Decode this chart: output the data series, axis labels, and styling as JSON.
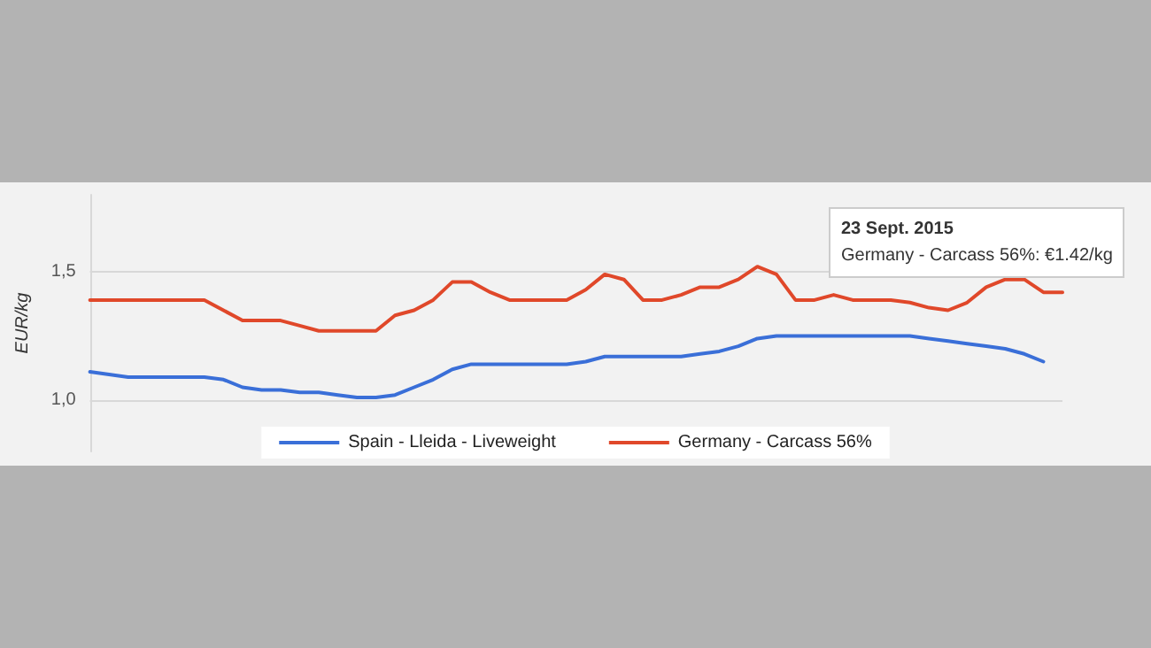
{
  "chart_data": {
    "type": "line",
    "ylabel": "EUR/kg",
    "categories": [
      null,
      null,
      null,
      null,
      null,
      null,
      null,
      null,
      null,
      null,
      null,
      null,
      null,
      null,
      null,
      null,
      null,
      null,
      null,
      null,
      null,
      null,
      null,
      null,
      null,
      null,
      null,
      null,
      null,
      null,
      null,
      null,
      null,
      null,
      null,
      null,
      null,
      null,
      null,
      null,
      null,
      null,
      null,
      null,
      null,
      null,
      null,
      null,
      null,
      null,
      null,
      null
    ],
    "series": [
      {
        "name": "Spain - Lleida - Liveweight",
        "color": "#3a6fd8",
        "values": [
          1.11,
          1.1,
          1.09,
          1.09,
          1.09,
          1.09,
          1.09,
          1.08,
          1.05,
          1.04,
          1.04,
          1.03,
          1.03,
          1.02,
          1.01,
          1.01,
          1.02,
          1.05,
          1.08,
          1.12,
          1.14,
          1.14,
          1.14,
          1.14,
          1.14,
          1.14,
          1.15,
          1.17,
          1.17,
          1.17,
          1.17,
          1.17,
          1.18,
          1.19,
          1.21,
          1.24,
          1.25,
          1.25,
          1.25,
          1.25,
          1.25,
          1.25,
          1.25,
          1.25,
          1.24,
          1.23,
          1.22,
          1.21,
          1.2,
          1.18,
          1.15,
          null
        ]
      },
      {
        "name": "Germany - Carcass 56%",
        "color": "#e0482a",
        "values": [
          1.39,
          1.39,
          1.39,
          1.39,
          1.39,
          1.39,
          1.39,
          1.35,
          1.31,
          1.31,
          1.31,
          1.29,
          1.27,
          1.27,
          1.27,
          1.27,
          1.33,
          1.35,
          1.39,
          1.46,
          1.46,
          1.42,
          1.39,
          1.39,
          1.39,
          1.39,
          1.43,
          1.49,
          1.47,
          1.39,
          1.39,
          1.41,
          1.44,
          1.44,
          1.47,
          1.52,
          1.49,
          1.39,
          1.39,
          1.41,
          1.39,
          1.39,
          1.39,
          1.38,
          1.36,
          1.35,
          1.38,
          1.44,
          1.47,
          1.47,
          1.42,
          1.42
        ]
      }
    ],
    "ylim": [
      0.8,
      1.8
    ],
    "yticks": [
      {
        "value": 1.0,
        "label": "1,0"
      },
      {
        "value": 1.5,
        "label": "1,5"
      }
    ],
    "grid": "y",
    "legend": "bottom",
    "marker": "none",
    "line_style": "solid",
    "annotations": [
      "23 Sept. 2015",
      "Germany - Carcass 56%: €1.42/kg"
    ]
  }
}
